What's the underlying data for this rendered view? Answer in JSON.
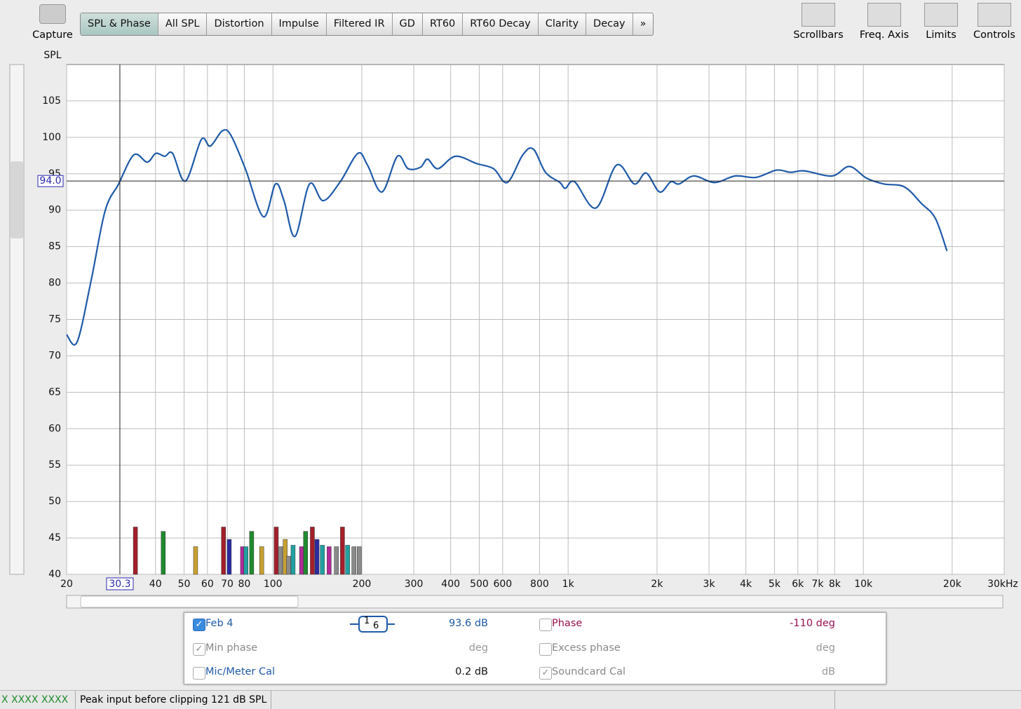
{
  "toolbar": {
    "capture": "Capture",
    "tabs": [
      "SPL & Phase",
      "All SPL",
      "Distortion",
      "Impulse",
      "Filtered IR",
      "GD",
      "RT60",
      "RT60 Decay",
      "Clarity",
      "Decay",
      "»"
    ],
    "active_tab": 0,
    "right": [
      "Scrollbars",
      "Freq. Axis",
      "Limits",
      "Controls"
    ]
  },
  "chart_data": {
    "type": "line",
    "y_label": "SPL",
    "color": "#1e5aa8",
    "log_x": true,
    "grid": true,
    "xlim": [
      20,
      30000
    ],
    "ylim": [
      40,
      110
    ],
    "xticks": [
      20,
      40,
      50,
      60,
      70,
      80,
      100,
      200,
      300,
      400,
      {
        "value": 500,
        "label": "500"
      },
      600,
      800,
      {
        "value": 1000,
        "label": "1k"
      },
      {
        "value": 2000,
        "label": "2k"
      },
      {
        "value": 3000,
        "label": "3k"
      },
      {
        "value": 4000,
        "label": "4k"
      },
      {
        "value": 5000,
        "label": "5k"
      },
      {
        "value": 6000,
        "label": "6k"
      },
      {
        "value": 7000,
        "label": "7k"
      },
      {
        "value": 8000,
        "label": "8k"
      },
      {
        "value": 10000,
        "label": "10k"
      },
      {
        "value": 20000,
        "label": "20k"
      },
      {
        "value": 30000,
        "label": "30kHz"
      }
    ],
    "yticks": [
      40,
      45,
      50,
      55,
      60,
      65,
      70,
      75,
      80,
      85,
      90,
      95,
      100,
      105
    ],
    "x": [
      20,
      21.7,
      24.2,
      27,
      30,
      33.8,
      37.5,
      40.1,
      43,
      45.7,
      50.5,
      57.2,
      61.3,
      67.4,
      72,
      80.6,
      92.8,
      102,
      109,
      118.8,
      133,
      148,
      169,
      194,
      209,
      234,
      264,
      287,
      316,
      334,
      362,
      415,
      490,
      559,
      622,
      702,
      762,
      838,
      938,
      978,
      1052,
      1242,
      1460,
      1676,
      1838,
      2040,
      2227,
      2375,
      2667,
      3134,
      3681,
      4325,
      5080,
      5662,
      6312,
      7834,
      8969,
      10253,
      11727,
      13770,
      15755,
      17530,
      19200
    ],
    "values": [
      72.9,
      71.9,
      80.3,
      89.9,
      93.6,
      97.6,
      96.6,
      97.8,
      97.4,
      97.8,
      94.0,
      99.7,
      98.8,
      100.9,
      100.3,
      95.7,
      89.1,
      93.6,
      91.3,
      86.4,
      93.6,
      91.3,
      93.9,
      97.8,
      96.2,
      92.5,
      97.4,
      95.7,
      95.9,
      97.0,
      95.7,
      97.4,
      96.4,
      95.7,
      93.8,
      97.6,
      98.4,
      95.2,
      93.8,
      93.0,
      93.9,
      90.3,
      96.2,
      93.6,
      95.1,
      92.5,
      93.9,
      93.6,
      94.7,
      93.8,
      94.7,
      94.5,
      95.5,
      95.2,
      95.4,
      94.7,
      96.0,
      94.4,
      93.6,
      93.2,
      90.9,
      88.9,
      84.4
    ],
    "markers": {
      "x": [
        34.2,
        42.5,
        54.7,
        68,
        71.1,
        78.9,
        81,
        84.7,
        91.6,
        102.6,
        106,
        110,
        113,
        117,
        125,
        129,
        136,
        141,
        147,
        155,
        164,
        172,
        179,
        188,
        196
      ],
      "values": [
        46.5,
        45.9,
        43.8,
        46.5,
        44.8,
        43.8,
        43.8,
        45.9,
        43.8,
        46.5,
        43.8,
        44.8,
        42.5,
        44,
        43.8,
        45.9,
        46.5,
        44.8,
        44,
        43.8,
        43.8,
        46.5,
        44,
        43.8,
        43.8
      ],
      "colors": [
        "#a31f2a",
        "#1f8a2e",
        "#c8a030",
        "#a31f2a",
        "#2a2aa0",
        "#b02a9a",
        "#20a0a0",
        "#1f8a2e",
        "#c8a030",
        "#a31f2a",
        "#8a8a8a",
        "#c8a030",
        "#8a8a8a",
        "#20a0a0",
        "#b02a9a",
        "#1f8a2e",
        "#a31f2a",
        "#2a2aa0",
        "#20a0a0",
        "#b02a9a",
        "#8a8a8a",
        "#a31f2a",
        "#20a0a0",
        "#8a8a8a",
        "#8a8a8a"
      ]
    },
    "cursor": {
      "x": 30.3,
      "y": {
        "value": 94,
        "label": "94.0"
      }
    }
  },
  "panel": {
    "rows": [
      [
        {
          "label": "Feb 4",
          "checked": true,
          "enabled": true
        },
        {
          "numerator": "1",
          "denominator": "6"
        },
        "93.6 dB",
        {
          "label": "Phase",
          "checked": false,
          "enabled": true
        },
        "-110 deg"
      ],
      [
        {
          "label": "Min phase",
          "checked": true,
          "enabled": false
        },
        null,
        "deg",
        {
          "label": "Excess phase",
          "checked": false,
          "enabled": false
        },
        "deg"
      ],
      [
        {
          "label": "Mic/Meter Cal",
          "checked": false,
          "enabled": true
        },
        null,
        "0.2 dB",
        {
          "label": "Soundcard Cal",
          "checked": true,
          "enabled": false
        },
        "dB"
      ]
    ]
  },
  "status": {
    "left": "X  XXXX XXXX",
    "message": "Peak input before clipping 121 dB SPL"
  }
}
